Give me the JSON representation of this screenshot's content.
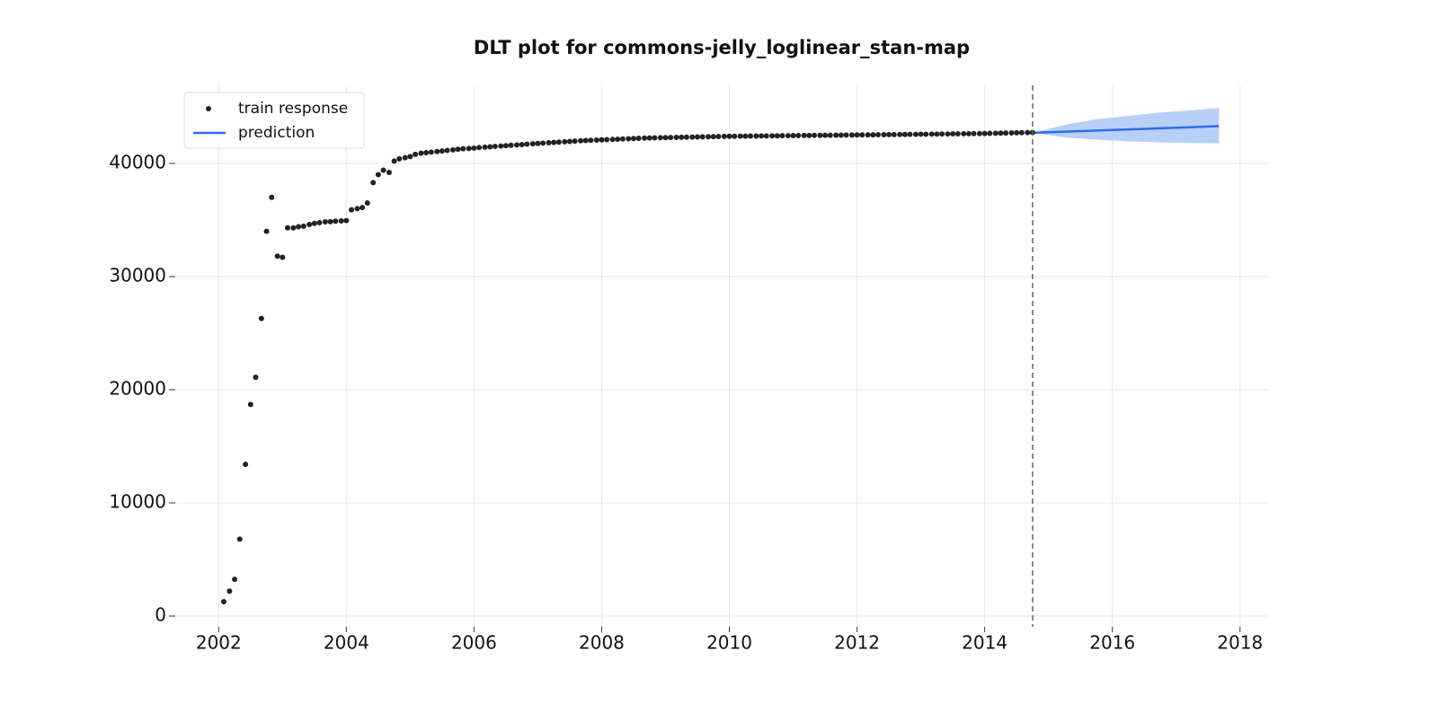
{
  "chart_data": {
    "type": "scatter-forecast",
    "title": "DLT plot for commons-jelly_loglinear_stan-map",
    "xlim": [
      2001.32,
      2018.44
    ],
    "xticks": [
      2002,
      2004,
      2006,
      2008,
      2010,
      2012,
      2014,
      2016,
      2018
    ],
    "ylim": [
      -950,
      46900
    ],
    "yticks": [
      0,
      10000,
      20000,
      30000,
      40000
    ],
    "grid": true,
    "legend": "upper left",
    "split_x": 2014.75,
    "series": [
      {
        "name": "train response",
        "type": "scatter",
        "color": "#222222",
        "x": [
          2002.08,
          2002.17,
          2002.25,
          2002.33,
          2002.42,
          2002.5,
          2002.58,
          2002.67,
          2002.75,
          2002.83,
          2002.92,
          2003.0,
          2003.08,
          2003.17,
          2003.25,
          2003.33,
          2003.42,
          2003.5,
          2003.58,
          2003.67,
          2003.75,
          2003.83,
          2003.92,
          2004.0,
          2004.08,
          2004.17,
          2004.25,
          2004.33,
          2004.42,
          2004.5,
          2004.58,
          2004.67,
          2004.75,
          2004.83,
          2004.92,
          2005.0,
          2005.08,
          2005.17,
          2005.25,
          2005.33,
          2005.42,
          2005.5,
          2005.58,
          2005.67,
          2005.75,
          2005.83,
          2005.92,
          2006.0,
          2006.08,
          2006.17,
          2006.25,
          2006.33,
          2006.42,
          2006.5,
          2006.58,
          2006.67,
          2006.75,
          2006.83,
          2006.92,
          2007.0,
          2007.08,
          2007.17,
          2007.25,
          2007.33,
          2007.42,
          2007.5,
          2007.58,
          2007.67,
          2007.75,
          2007.83,
          2007.92,
          2008.0,
          2008.08,
          2008.17,
          2008.25,
          2008.33,
          2008.42,
          2008.5,
          2008.58,
          2008.67,
          2008.75,
          2008.83,
          2008.92,
          2009.0,
          2009.08,
          2009.17,
          2009.25,
          2009.33,
          2009.42,
          2009.5,
          2009.58,
          2009.67,
          2009.75,
          2009.83,
          2009.92,
          2010.0,
          2010.08,
          2010.17,
          2010.25,
          2010.33,
          2010.42,
          2010.5,
          2010.58,
          2010.67,
          2010.75,
          2010.83,
          2010.92,
          2011.0,
          2011.08,
          2011.17,
          2011.25,
          2011.33,
          2011.42,
          2011.5,
          2011.58,
          2011.67,
          2011.75,
          2011.83,
          2011.92,
          2012.0,
          2012.08,
          2012.17,
          2012.25,
          2012.33,
          2012.42,
          2012.5,
          2012.58,
          2012.67,
          2012.75,
          2012.83,
          2012.92,
          2013.0,
          2013.08,
          2013.17,
          2013.25,
          2013.33,
          2013.42,
          2013.5,
          2013.58,
          2013.67,
          2013.75,
          2013.83,
          2013.92,
          2014.0,
          2014.08,
          2014.17,
          2014.25,
          2014.33,
          2014.42,
          2014.5,
          2014.58,
          2014.67,
          2014.75
        ],
        "values": [
          1270,
          2200,
          3250,
          6800,
          13400,
          18700,
          21100,
          26300,
          34000,
          37000,
          31800,
          31700,
          34300,
          34300,
          34400,
          34450,
          34600,
          34700,
          34760,
          34840,
          34850,
          34900,
          34920,
          34950,
          35900,
          36000,
          36100,
          36500,
          38300,
          39000,
          39400,
          39200,
          40200,
          40400,
          40500,
          40600,
          40800,
          40900,
          40950,
          41000,
          41050,
          41100,
          41150,
          41200,
          41250,
          41300,
          41320,
          41350,
          41400,
          41430,
          41460,
          41500,
          41530,
          41560,
          41600,
          41630,
          41660,
          41700,
          41730,
          41760,
          41790,
          41820,
          41850,
          41880,
          41910,
          41940,
          41970,
          42000,
          42020,
          42040,
          42060,
          42080,
          42100,
          42120,
          42140,
          42160,
          42180,
          42200,
          42220,
          42240,
          42250,
          42260,
          42270,
          42280,
          42290,
          42300,
          42310,
          42320,
          42330,
          42340,
          42350,
          42360,
          42370,
          42380,
          42390,
          42400,
          42400,
          42410,
          42410,
          42420,
          42420,
          42430,
          42430,
          42440,
          42440,
          42450,
          42450,
          42460,
          42460,
          42470,
          42470,
          42480,
          42480,
          42490,
          42490,
          42500,
          42500,
          42510,
          42510,
          42520,
          42520,
          42530,
          42530,
          42540,
          42540,
          42550,
          42550,
          42560,
          42560,
          42570,
          42570,
          42580,
          42580,
          42590,
          42590,
          42600,
          42600,
          42610,
          42610,
          42620,
          42620,
          42630,
          42630,
          42640,
          42650,
          42660,
          42670,
          42680,
          42690,
          42700,
          42710,
          42720,
          42730
        ]
      },
      {
        "name": "prediction",
        "type": "line",
        "color": "#2b6de6",
        "band_color": "#b8cff8",
        "x": [
          2014.75,
          2015.25,
          2015.75,
          2016.25,
          2016.75,
          2017.25,
          2017.67
        ],
        "values": [
          42700,
          42800,
          42900,
          43000,
          43100,
          43200,
          43300
        ],
        "lower": [
          42700,
          42300,
          42100,
          41950,
          41850,
          41800,
          41780
        ],
        "upper": [
          42700,
          43400,
          43900,
          44200,
          44500,
          44700,
          44900
        ]
      }
    ]
  }
}
